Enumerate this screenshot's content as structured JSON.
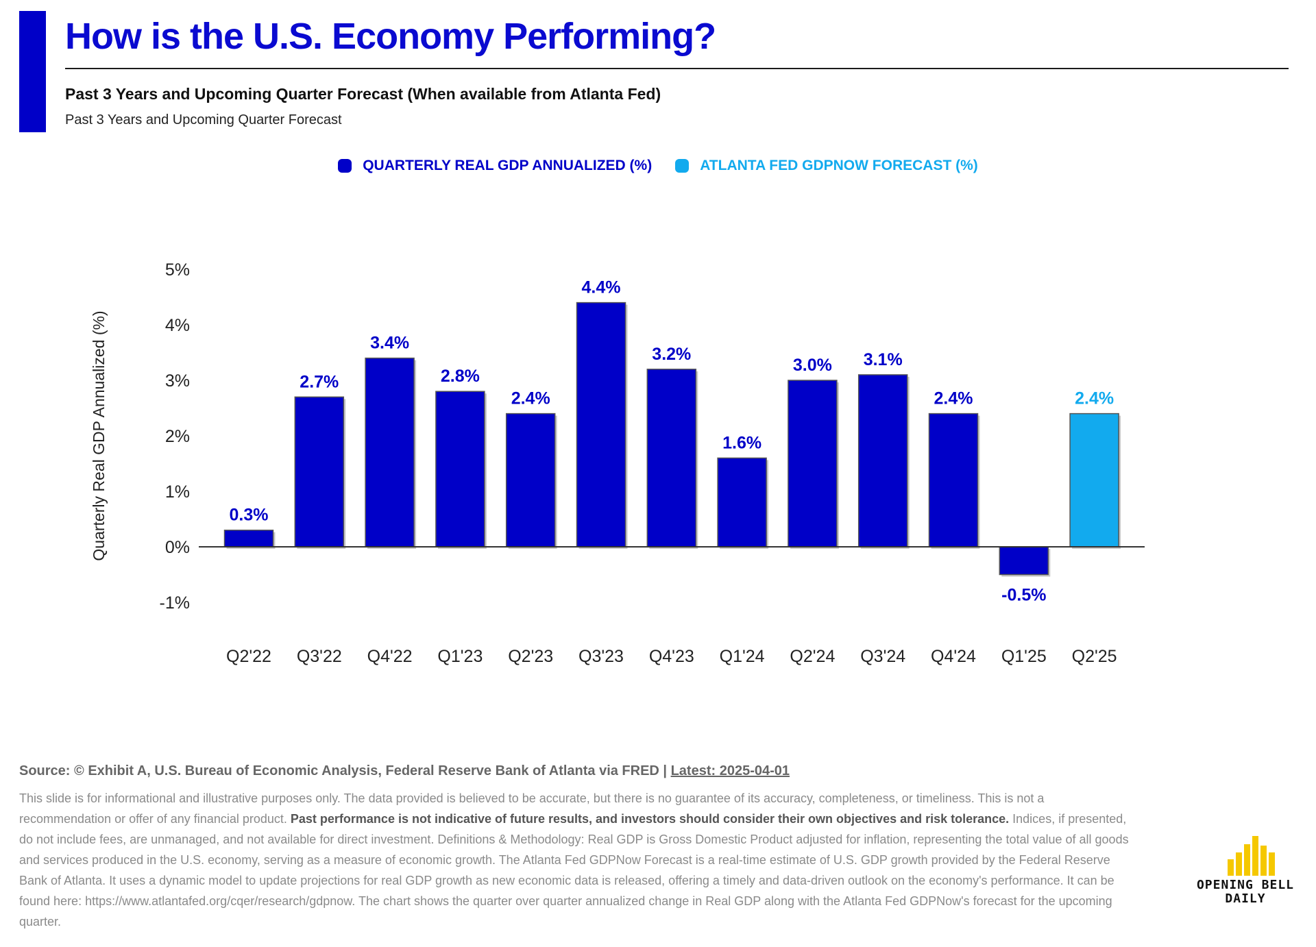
{
  "header": {
    "title": "How is the U.S. Economy Performing?",
    "subtitle": "Past 3 Years and Upcoming Quarter Forecast (When available from Atlanta Fed)",
    "subtitle2": "Past 3 Years and Upcoming Quarter Forecast",
    "accent_color": "#0000c8"
  },
  "legend": {
    "items": [
      {
        "label": "QUARTERLY REAL GDP ANNUALIZED (%)",
        "color": "#0000c8"
      },
      {
        "label": "ATLANTA FED GDPNOW FORECAST (%)",
        "color": "#12aaee"
      }
    ]
  },
  "chart_data": {
    "type": "bar",
    "ylabel": "Quarterly Real GDP Annualized (%)",
    "ylim": [
      -1,
      5
    ],
    "yticks": [
      -1,
      0,
      1,
      2,
      3,
      4,
      5
    ],
    "ytick_labels": [
      "-1%",
      "0%",
      "1%",
      "2%",
      "3%",
      "4%",
      "5%"
    ],
    "categories": [
      "Q2'22",
      "Q3'22",
      "Q4'22",
      "Q1'23",
      "Q2'23",
      "Q3'23",
      "Q4'23",
      "Q1'24",
      "Q2'24",
      "Q3'24",
      "Q4'24",
      "Q1'25",
      "Q2'25"
    ],
    "series": [
      {
        "name": "QUARTERLY REAL GDP ANNUALIZED (%)",
        "color": "#0000c8",
        "values": [
          0.3,
          2.7,
          3.4,
          2.8,
          2.4,
          4.4,
          3.2,
          1.6,
          3.0,
          3.1,
          2.4,
          -0.5,
          null
        ]
      },
      {
        "name": "ATLANTA FED GDPNOW FORECAST (%)",
        "color": "#12aaee",
        "values": [
          null,
          null,
          null,
          null,
          null,
          null,
          null,
          null,
          null,
          null,
          null,
          null,
          2.4
        ]
      }
    ],
    "data_labels": [
      "0.3%",
      "2.7%",
      "3.4%",
      "2.8%",
      "2.4%",
      "4.4%",
      "3.2%",
      "1.6%",
      "3.0%",
      "3.1%",
      "2.4%",
      "-0.5%",
      "2.4%"
    ],
    "grid": false,
    "legend_position": "top-center"
  },
  "footer": {
    "source_text": "Source: © Exhibit A, U.S. Bureau of Economic Analysis, Federal Reserve Bank of Atlanta via FRED | ",
    "latest_text": "Latest: 2025-04-01",
    "disclaimer_part1": "This slide is for informational and illustrative purposes only. The data provided is believed to be accurate, but there is no guarantee of its accuracy, completeness, or timeliness. This is not a recommendation or offer of any financial product. ",
    "disclaimer_bold": "Past performance is not indicative of future results, and investors should consider their own objectives and risk tolerance.",
    "disclaimer_part2": " Indices, if presented, do not include fees, are unmanaged, and not available for direct investment. Definitions & Methodology: Real GDP is Gross Domestic Product adjusted for inflation, representing the total value of all goods and services produced in the U.S. economy, serving as a measure of economic growth. The Atlanta Fed GDPNow Forecast is a real-time estimate of U.S. GDP growth provided by the Federal Reserve Bank of Atlanta. It uses a dynamic model to update projections for real GDP growth as new economic data is released, offering a timely and data-driven outlook on the economy's performance. It can be found here: https://www.atlantafed.org/cqer/research/gdpnow. The chart shows the quarter over quarter annualized change in Real GDP along with the Atlanta Fed GDPNow's forecast for the upcoming quarter."
  },
  "logo": {
    "line1": "OPENING BELL",
    "line2": "DAILY",
    "bar_color": "#f5c800"
  }
}
